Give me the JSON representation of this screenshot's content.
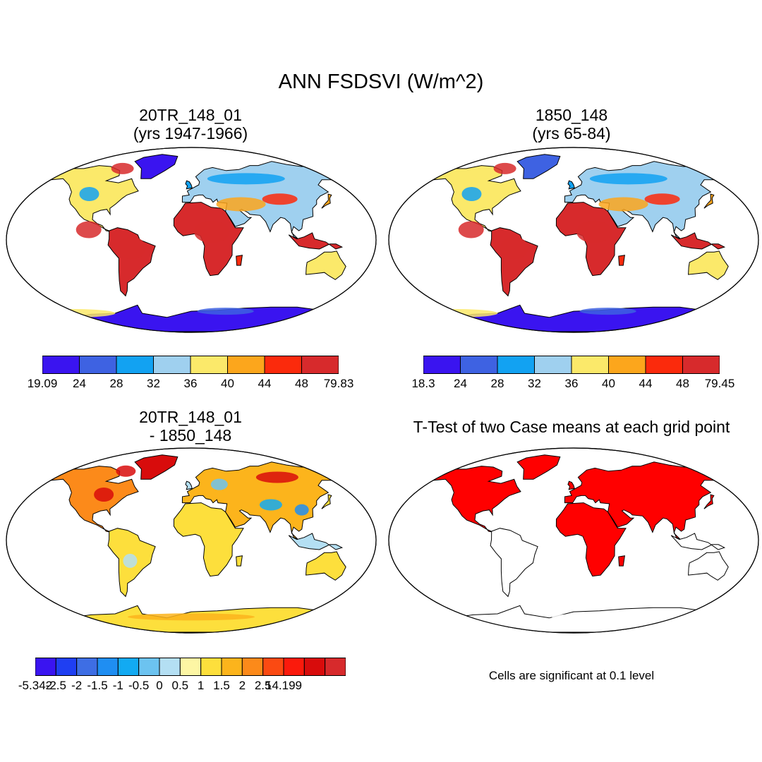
{
  "figure": {
    "title": "ANN FSDSVI (W/m^2)"
  },
  "colors": {
    "abs_scale": [
      "#3a14f0",
      "#3e62e2",
      "#12a2f2",
      "#9fd0ef",
      "#fbe96a",
      "#fca61c",
      "#fb2a0c",
      "#d72a2c"
    ],
    "diff_scale": [
      "#3a14f0",
      "#1f3ff2",
      "#3e6ee4",
      "#1f8ef2",
      "#12aaf2",
      "#6cc3f0",
      "#b4dff3",
      "#fdf6a4",
      "#fddf3c",
      "#fcb41c",
      "#fc8a1a",
      "#fb4a12",
      "#fb1a0c",
      "#d80c0c",
      "#d72a2c"
    ],
    "significant": "#ff0000",
    "land_outline": "#000000"
  },
  "panels": [
    {
      "id": "case1",
      "title_line1": "20TR_148_01",
      "title_line2": "(yrs 1947-1966)",
      "colorbar_labels": [
        "19.09",
        "24",
        "28",
        "32",
        "36",
        "40",
        "44",
        "48",
        "79.83"
      ]
    },
    {
      "id": "case2",
      "title_line1": "1850_148",
      "title_line2": "(yrs 65-84)",
      "colorbar_labels": [
        "18.3",
        "24",
        "28",
        "32",
        "36",
        "40",
        "44",
        "48",
        "79.45"
      ]
    },
    {
      "id": "diff",
      "title_line1": "20TR_148_01",
      "title_line2": "- 1850_148",
      "colorbar_labels": [
        "-5.342",
        "-2.5",
        "-2",
        "-1.5",
        "-1",
        "-0.5",
        "0",
        "0.5",
        "1",
        "1.5",
        "2",
        "2.5",
        "14.199"
      ]
    },
    {
      "id": "ttest",
      "title_line1": "T-Test of two Case means at each grid point",
      "note": "Cells are significant at 0.1 level"
    }
  ]
}
